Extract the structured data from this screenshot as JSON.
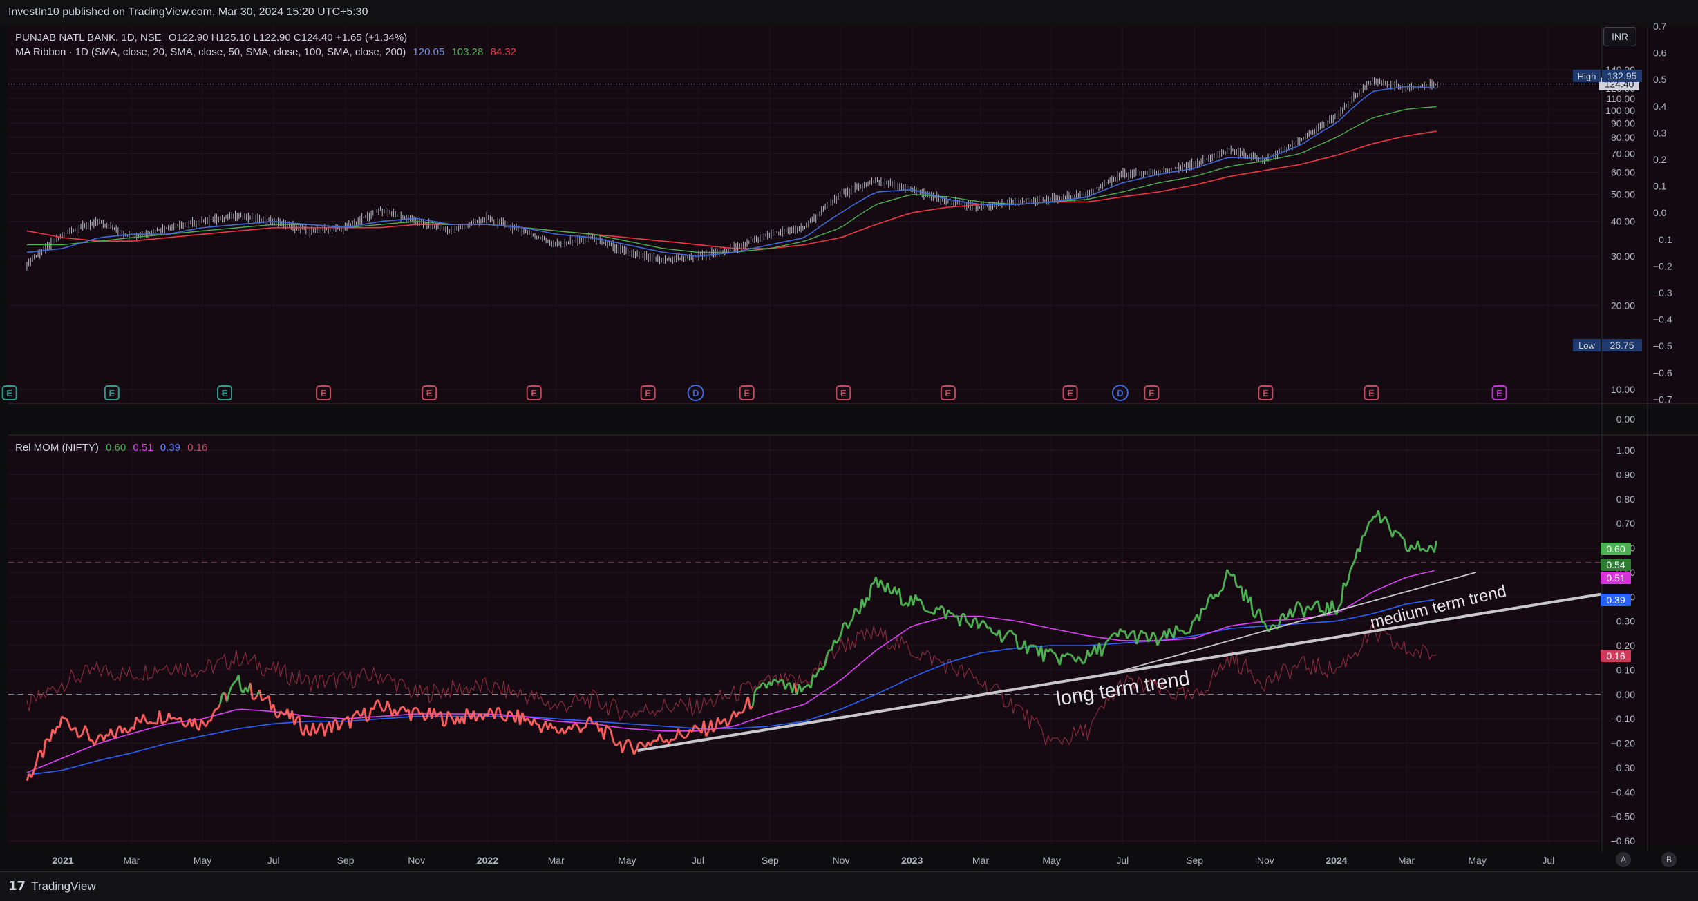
{
  "header": {
    "published": "InvestIn10 published on TradingView.com, Mar 30, 2024 15:20 UTC+5:30"
  },
  "legend": {
    "symbol": "PUNJAB NATL BANK, 1D, NSE",
    "ohlc": "O122.90  H125.10  L122.90  C124.40  +1.65 (+1.34%)",
    "ma_label": "MA Ribbon · 1D (SMA, close, 20, SMA, close, 50, SMA, close, 100, SMA, close, 200)",
    "ma_values": [
      "120.05",
      "103.28",
      "84.32"
    ],
    "rel_label": "Rel MOM (NIFTY)",
    "rel_values": [
      "0.60",
      "0.51",
      "0.39",
      "0.16"
    ]
  },
  "currency": "INR",
  "footer": {
    "brand": "TradingView"
  },
  "scale_buttons": [
    "A",
    "B"
  ],
  "colors": {
    "bg": "#0d0d10",
    "pane_bg": "#150a12",
    "candle": "#b2b5be",
    "ma20": "#3f6ad8",
    "ma50": "#4caf50",
    "ma100": "#f23645",
    "rel_pos": "#4caf50",
    "rel_neg": "#f95d5d",
    "rel_ma_purple": "#e040fb",
    "rel_ma_blue": "#2962ff",
    "rel_faint": "#8e2c40",
    "trend": "#c8c8cc"
  },
  "chart_data": [
    {
      "type": "line",
      "subtype": "candlestick",
      "title": "PUNJAB NATL BANK, 1D, NSE",
      "x_ticks": [
        "2021",
        "Mar",
        "May",
        "Jul",
        "Sep",
        "Nov",
        "2022",
        "Mar",
        "May",
        "Jul",
        "Sep",
        "Nov",
        "2023",
        "Mar",
        "May",
        "Jul",
        "Sep",
        "Nov",
        "2024",
        "Mar",
        "May",
        "Jul"
      ],
      "y_ticks": [
        "140.00",
        "130.00",
        "120.00",
        "110.00",
        "100.00",
        "90.00",
        "80.00",
        "70.00",
        "60.00",
        "50.00",
        "40.00",
        "30.00",
        "20.00",
        "10.00"
      ],
      "y_scale": "log",
      "secondary_y_ticks": [
        "0.7",
        "0.6",
        "0.5",
        "0.4",
        "0.3",
        "0.2",
        "0.1",
        "0.0",
        "−0.1",
        "−0.2",
        "−0.3",
        "−0.4",
        "−0.5",
        "−0.6",
        "−0.7"
      ],
      "price_axis_extra": "0.00",
      "markers": {
        "high_label": "High",
        "high": "132.95",
        "low_label": "Low",
        "low": "26.75",
        "last": "124.40"
      },
      "series": [
        {
          "name": "Price",
          "x": [
            "2020-12-01",
            "2021-01-01",
            "2021-02-01",
            "2021-03-01",
            "2021-04-01",
            "2021-05-01",
            "2021-06-01",
            "2021-07-01",
            "2021-08-01",
            "2021-09-01",
            "2021-10-01",
            "2021-11-01",
            "2021-12-01",
            "2022-01-01",
            "2022-02-01",
            "2022-03-01",
            "2022-04-01",
            "2022-05-01",
            "2022-06-01",
            "2022-07-01",
            "2022-08-01",
            "2022-09-01",
            "2022-10-01",
            "2022-11-01",
            "2022-12-01",
            "2023-01-01",
            "2023-02-01",
            "2023-03-01",
            "2023-04-01",
            "2023-05-01",
            "2023-06-01",
            "2023-07-01",
            "2023-08-01",
            "2023-09-01",
            "2023-10-01",
            "2023-11-01",
            "2023-12-01",
            "2024-01-01",
            "2024-02-01",
            "2024-03-01",
            "2024-03-28"
          ],
          "values": [
            28,
            36,
            40,
            35,
            38,
            40,
            42,
            40,
            37,
            38,
            44,
            40,
            37,
            41,
            37,
            33,
            35,
            31,
            29,
            30,
            32,
            36,
            38,
            50,
            56,
            52,
            47,
            45,
            47,
            48,
            50,
            59,
            60,
            64,
            72,
            66,
            78,
            95,
            128,
            120,
            124.4
          ]
        },
        {
          "name": "SMA 20",
          "values": [
            31,
            32,
            35,
            36,
            36,
            38,
            39,
            40,
            39,
            38,
            40,
            41,
            39,
            39,
            38,
            36,
            35,
            33,
            31,
            30,
            31,
            33,
            35,
            43,
            51,
            52,
            48,
            46,
            46,
            47,
            49,
            55,
            59,
            62,
            68,
            67,
            75,
            90,
            117,
            122,
            120.05
          ]
        },
        {
          "name": "SMA 50",
          "values": [
            33,
            33,
            34,
            35,
            36,
            37,
            38,
            39,
            39,
            38,
            39,
            40,
            39,
            39,
            38,
            37,
            36,
            34,
            32,
            31,
            31,
            32,
            34,
            38,
            46,
            50,
            49,
            47,
            46,
            47,
            48,
            51,
            55,
            58,
            63,
            66,
            70,
            80,
            94,
            101,
            103.28
          ]
        },
        {
          "name": "SMA 100",
          "values": [
            37,
            35,
            34,
            34,
            35,
            36,
            37,
            38,
            38,
            38,
            38,
            39,
            39,
            39,
            38,
            37,
            36,
            35,
            34,
            33,
            32,
            32,
            33,
            35,
            39,
            43,
            45,
            46,
            46,
            47,
            47,
            49,
            51,
            54,
            58,
            61,
            64,
            69,
            76,
            81,
            84.32
          ]
        }
      ],
      "events": [
        "E",
        "E",
        "E",
        "E",
        "E",
        "E",
        "E",
        "D",
        "E",
        "E",
        "E",
        "E",
        "D",
        "E",
        "E",
        "E",
        "E"
      ]
    },
    {
      "type": "line",
      "title": "Rel MOM (NIFTY)",
      "y_ticks": [
        "1.00",
        "0.90",
        "0.80",
        "0.70",
        "0.60",
        "0.50",
        "0.40",
        "0.30",
        "0.20",
        "0.10",
        "0.00",
        "−0.10",
        "−0.20",
        "−0.30",
        "−0.40",
        "−0.50",
        "−0.60"
      ],
      "ylim": [
        -0.6,
        1.0
      ],
      "value_badges": [
        "0.60",
        "0.54",
        "0.51",
        "0.39",
        "0.16"
      ],
      "reference_lines": [
        {
          "y": 0.0,
          "style": "dashed"
        },
        {
          "y": 0.54,
          "style": "dashed"
        }
      ],
      "series": [
        {
          "name": "Rel MOM",
          "x": [
            "2020-12-01",
            "2021-01-01",
            "2021-02-01",
            "2021-03-01",
            "2021-04-01",
            "2021-05-01",
            "2021-06-01",
            "2021-07-01",
            "2021-08-01",
            "2021-09-01",
            "2021-10-01",
            "2021-11-01",
            "2021-12-01",
            "2022-01-01",
            "2022-02-01",
            "2022-03-01",
            "2022-04-01",
            "2022-05-01",
            "2022-06-01",
            "2022-07-01",
            "2022-08-01",
            "2022-09-01",
            "2022-10-01",
            "2022-11-01",
            "2022-12-01",
            "2023-01-01",
            "2023-02-01",
            "2023-03-01",
            "2023-04-01",
            "2023-05-01",
            "2023-06-01",
            "2023-07-01",
            "2023-08-01",
            "2023-09-01",
            "2023-10-01",
            "2023-11-01",
            "2023-12-01",
            "2024-01-01",
            "2024-02-01",
            "2024-03-01",
            "2024-03-28"
          ],
          "values": [
            -0.35,
            -0.1,
            -0.2,
            -0.12,
            -0.08,
            -0.12,
            0.05,
            -0.05,
            -0.15,
            -0.12,
            -0.05,
            -0.08,
            -0.1,
            -0.08,
            -0.1,
            -0.15,
            -0.12,
            -0.22,
            -0.18,
            -0.15,
            -0.1,
            0.05,
            0.0,
            0.25,
            0.45,
            0.38,
            0.33,
            0.28,
            0.22,
            0.15,
            0.15,
            0.25,
            0.22,
            0.28,
            0.5,
            0.28,
            0.35,
            0.35,
            0.75,
            0.6,
            0.6
          ]
        },
        {
          "name": "MA purple",
          "values": [
            -0.32,
            -0.26,
            -0.2,
            -0.16,
            -0.12,
            -0.1,
            -0.06,
            -0.07,
            -0.09,
            -0.1,
            -0.09,
            -0.08,
            -0.08,
            -0.08,
            -0.09,
            -0.11,
            -0.12,
            -0.14,
            -0.15,
            -0.15,
            -0.13,
            -0.08,
            -0.04,
            0.06,
            0.18,
            0.28,
            0.32,
            0.32,
            0.3,
            0.27,
            0.24,
            0.22,
            0.22,
            0.23,
            0.28,
            0.3,
            0.31,
            0.33,
            0.42,
            0.48,
            0.51
          ]
        },
        {
          "name": "MA blue",
          "values": [
            -0.33,
            -0.31,
            -0.27,
            -0.24,
            -0.2,
            -0.17,
            -0.14,
            -0.12,
            -0.11,
            -0.11,
            -0.1,
            -0.09,
            -0.09,
            -0.09,
            -0.09,
            -0.1,
            -0.11,
            -0.12,
            -0.13,
            -0.14,
            -0.14,
            -0.13,
            -0.11,
            -0.06,
            0.0,
            0.07,
            0.13,
            0.17,
            0.19,
            0.2,
            0.2,
            0.21,
            0.22,
            0.24,
            0.27,
            0.28,
            0.29,
            0.3,
            0.33,
            0.37,
            0.39
          ]
        },
        {
          "name": "Rel faint",
          "values": [
            -0.05,
            0.05,
            0.1,
            0.08,
            0.12,
            0.1,
            0.15,
            0.1,
            0.05,
            0.06,
            0.08,
            0.0,
            0.02,
            0.03,
            0.0,
            -0.05,
            -0.02,
            -0.08,
            -0.05,
            -0.05,
            0.0,
            0.05,
            0.05,
            0.2,
            0.25,
            0.18,
            0.12,
            0.05,
            -0.05,
            -0.2,
            -0.15,
            0.05,
            0.02,
            -0.02,
            0.15,
            0.05,
            0.12,
            0.1,
            0.25,
            0.18,
            0.16
          ]
        }
      ],
      "annotations": [
        "long term trend",
        "medium term trend"
      ]
    }
  ]
}
